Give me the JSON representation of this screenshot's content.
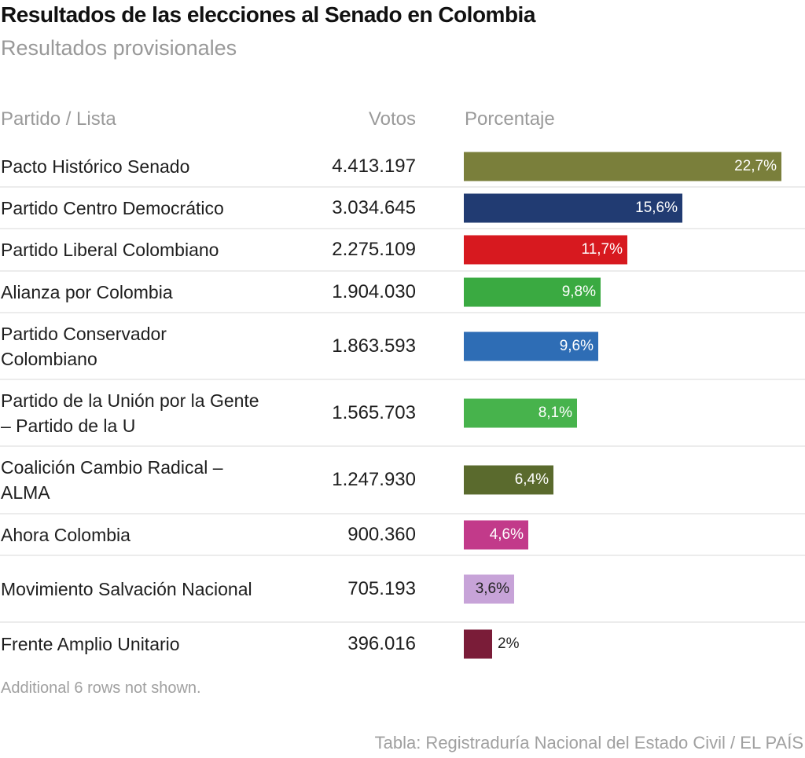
{
  "header": {
    "title": "Resultados de las elecciones al Senado en Colombia",
    "subtitle": "Resultados provisionales"
  },
  "table": {
    "columns": [
      "Partido / Lista",
      "Votos",
      "Porcentaje"
    ]
  },
  "chart_data": {
    "type": "table",
    "title": "Resultados de las elecciones al Senado en Colombia",
    "subtitle": "Resultados provisionales",
    "columns": [
      "Partido / Lista",
      "Votos",
      "Porcentaje"
    ],
    "scale_max": 22.7,
    "rows": [
      {
        "party": "Pacto Histórico Senado",
        "votes": "4.413.197",
        "pct": 22.7,
        "pct_label": "22,7%",
        "color": "#7a7f3b",
        "label_color": "#ffffff",
        "label_inside": true
      },
      {
        "party": "Partido Centro Democrático",
        "votes": "3.034.645",
        "pct": 15.6,
        "pct_label": "15,6%",
        "color": "#213b72",
        "label_color": "#ffffff",
        "label_inside": true
      },
      {
        "party": "Partido Liberal Colombiano",
        "votes": "2.275.109",
        "pct": 11.7,
        "pct_label": "11,7%",
        "color": "#d7191f",
        "label_color": "#ffffff",
        "label_inside": true
      },
      {
        "party": "Alianza por Colombia",
        "votes": "1.904.030",
        "pct": 9.8,
        "pct_label": "9,8%",
        "color": "#3aaa41",
        "label_color": "#ffffff",
        "label_inside": true
      },
      {
        "party": "Partido Conservador Colombiano",
        "votes": "1.863.593",
        "pct": 9.6,
        "pct_label": "9,6%",
        "color": "#2e6db5",
        "label_color": "#ffffff",
        "label_inside": true
      },
      {
        "party": "Partido de la Unión por la Gente – Partido de la U",
        "votes": "1.565.703",
        "pct": 8.1,
        "pct_label": "8,1%",
        "color": "#47b34c",
        "label_color": "#ffffff",
        "label_inside": true
      },
      {
        "party": "Coalición Cambio Radical – ALMA",
        "votes": "1.247.930",
        "pct": 6.4,
        "pct_label": "6,4%",
        "color": "#5a6a2d",
        "label_color": "#ffffff",
        "label_inside": true
      },
      {
        "party": "Ahora Colombia",
        "votes": "900.360",
        "pct": 4.6,
        "pct_label": "4,6%",
        "color": "#c23a8a",
        "label_color": "#ffffff",
        "label_inside": true
      },
      {
        "party": "Movimiento Salvación Nacional",
        "votes": "705.193",
        "pct": 3.6,
        "pct_label": "3,6%",
        "color": "#c7a3d8",
        "label_color": "#222222",
        "label_inside": true
      },
      {
        "party": "Frente Amplio Unitario",
        "votes": "396.016",
        "pct": 2.0,
        "pct_label": "2%",
        "color": "#7a1c38",
        "label_color": "#222222",
        "label_inside": false
      }
    ]
  },
  "footer": {
    "note": "Additional 6 rows not shown.",
    "source": "Tabla: Registraduría Nacional del Estado Civil / EL PAÍS"
  }
}
